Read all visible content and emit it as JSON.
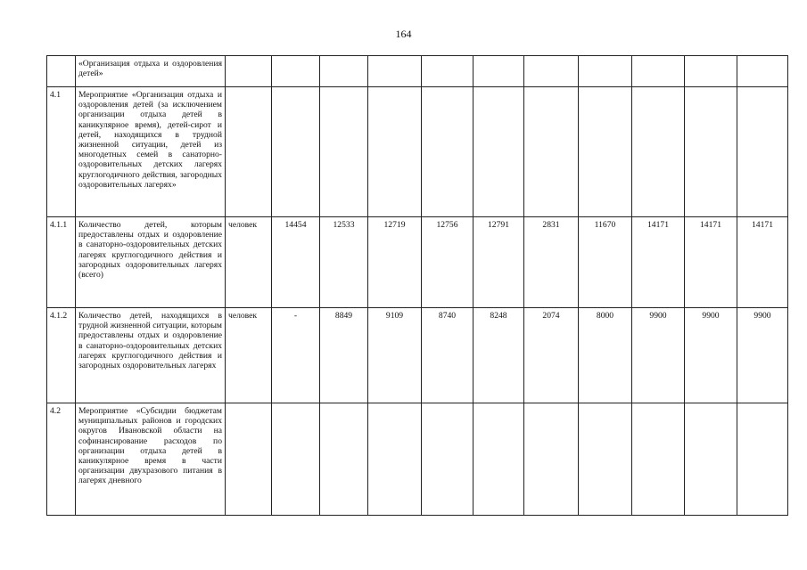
{
  "page_number": "164",
  "rows": [
    {
      "num": "",
      "text": "«Организация отдыха и оздоровления детей»",
      "unit": "",
      "values": [
        "",
        "",
        "",
        "",
        "",
        "",
        "",
        "",
        "",
        ""
      ]
    },
    {
      "num": "4.1",
      "text": "Мероприятие «Организация отдыха и оздоровления детей (за исключением организации отдыха детей в каникулярное время), детей-сирот и детей, находящихся в трудной жизненной ситуации, детей из многодетных семей в санаторно-оздоровительных детских лагерях круглогодичного действия, загородных оздоровительных лагерях»",
      "unit": "",
      "values": [
        "",
        "",
        "",
        "",
        "",
        "",
        "",
        "",
        "",
        ""
      ]
    },
    {
      "num": "4.1.1",
      "text": "Количество детей, которым предоставлены отдых и оздоровление в санаторно-оздоровительных детских лагерях круглогодичного действия и загородных оздоровительных лагерях (всего)",
      "unit": "человек",
      "values": [
        "14454",
        "12533",
        "12719",
        "12756",
        "12791",
        "2831",
        "11670",
        "14171",
        "14171",
        "14171"
      ]
    },
    {
      "num": "4.1.2",
      "text": "Количество детей, находящихся в трудной жизненной ситуации, которым предоставлены отдых и оздоровление в санаторно-оздоровительных детских лагерях круглогодичного действия и загородных оздоровительных лагерях",
      "unit": "человек",
      "values": [
        "-",
        "8849",
        "9109",
        "8740",
        "8248",
        "2074",
        "8000",
        "9900",
        "9900",
        "9900"
      ]
    },
    {
      "num": "4.2",
      "text": "Мероприятие «Субсидии бюджетам муниципальных районов и городских округов Ивановской области на софинансирование расходов по организации отдыха детей в каникулярное время в части организации двухразового питания в лагерях дневного",
      "unit": "",
      "values": [
        "",
        "",
        "",
        "",
        "",
        "",
        "",
        "",
        "",
        ""
      ]
    }
  ]
}
